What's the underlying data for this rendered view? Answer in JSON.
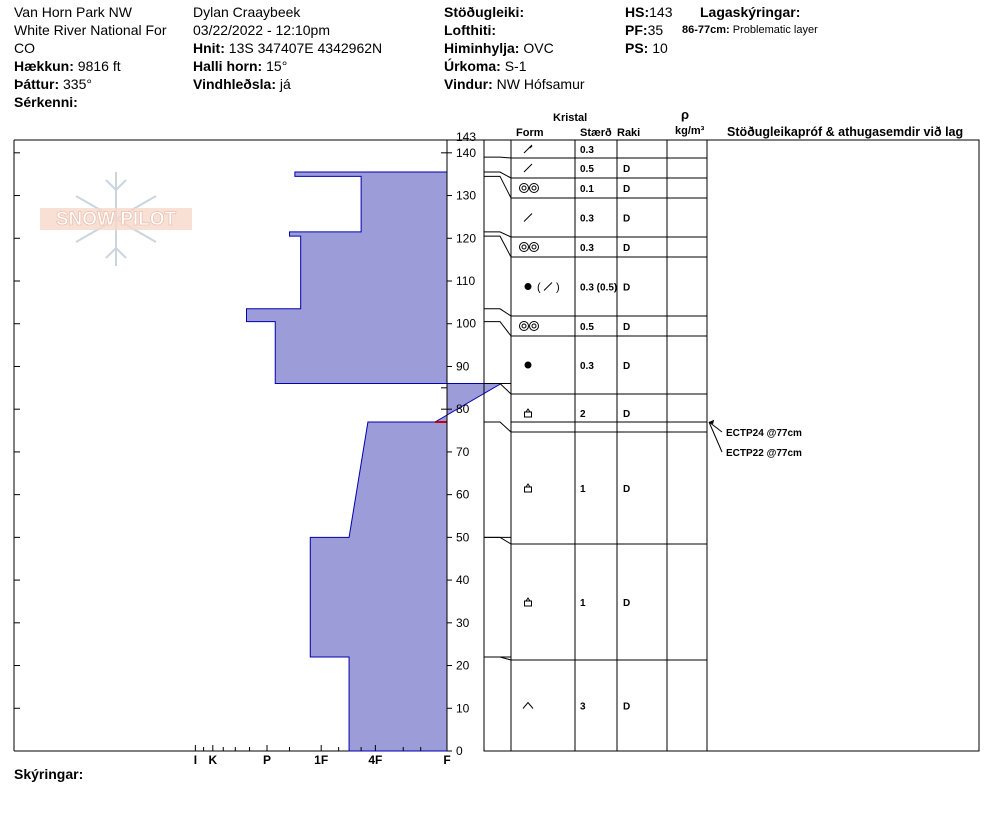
{
  "header": {
    "location_line1": "Van Horn Park NW",
    "location_line2": "White River National For",
    "location_line3": "CO",
    "elevation_label": "Hækkun:",
    "elevation_value": "9816 ft",
    "aspect_label": "Þáttur:",
    "aspect_value": "335°",
    "features_label": "Sérkenni:",
    "observer": "Dylan Craaybeek",
    "datetime": "03/22/2022 - 12:10pm",
    "coords_label": "Hnit:",
    "coords_value": "13S 347407E 4342962N",
    "slope_label": "Halli horn:",
    "slope_value": "15°",
    "wind_loading_label": "Vindhleðsla:",
    "wind_loading_value": "já",
    "stability_label": "Stöðugleiki:",
    "air_temp_label": "Lofthiti:",
    "sky_label": "Himinhylja:",
    "sky_value": "OVC",
    "precip_label": "Úrkoma:",
    "precip_value": "S-1",
    "wind_label": "Vindur:",
    "wind_value": "NW Hófsamur",
    "hs_label": "HS:",
    "hs_value": "143",
    "pf_label": "PF:",
    "pf_value": "35",
    "ps_label": "PS:",
    "ps_value": "10",
    "layer_notes_label": "Lagaskýringar:",
    "layer_note_range": "86-77cm:",
    "layer_note_text": "Problematic layer"
  },
  "table_headers": {
    "crystal": "Kristal",
    "form": "Form",
    "size": "Stærð",
    "moisture": "Raki",
    "rho": "ρ",
    "density_unit": "kg/m³",
    "tests": "Stöðugleikapróf & athugasemdir við lag"
  },
  "footer": {
    "comments_label": "Skýringar:"
  },
  "logo_text": "SNOW PILOT",
  "colors": {
    "fill": "#9c9cd8",
    "stroke": "#0000b0",
    "weak_layer": "#c00000"
  },
  "chart_data": {
    "type": "snow_profile",
    "height_axis": {
      "ticks": [
        "0",
        "10",
        "20",
        "30",
        "40",
        "50",
        "60",
        "70",
        "80",
        "90",
        "100",
        "110",
        "120",
        "130",
        "140",
        "143"
      ],
      "range": [
        0,
        143
      ]
    },
    "hardness_axis": {
      "ticks": [
        "I",
        "K",
        "P",
        "1F",
        "4F",
        "F"
      ],
      "tick_values": [
        5,
        4,
        2,
        1,
        0.5,
        0.2
      ]
    },
    "hardness_profile": [
      {
        "bottom": 143,
        "top": 143,
        "hardness": 0.2
      },
      {
        "bottom": 134.5,
        "top": 143,
        "hardness": 0.2
      },
      {
        "bottom": 134.5,
        "top": 135.5,
        "hardness": 1.4
      },
      {
        "bottom": 121.5,
        "top": 134.5,
        "hardness": 0.6
      },
      {
        "bottom": 120.5,
        "top": 121.5,
        "hardness": 1.5
      },
      {
        "bottom": 103.5,
        "top": 120.5,
        "hardness": 1.3
      },
      {
        "bottom": 100.5,
        "top": 103.5,
        "hardness": 2.6
      },
      {
        "bottom": 86,
        "top": 100.5,
        "hardness": 1.8
      },
      {
        "bottom": 77,
        "top": 86,
        "hardness": 0.1
      },
      {
        "bottom": 77,
        "top": 77,
        "hardness": 0.55
      },
      {
        "bottom": 50,
        "top": 50,
        "hardness": 0.7
      },
      {
        "bottom": 22,
        "top": 50,
        "hardness": 1.15
      },
      {
        "bottom": 0,
        "top": 22,
        "hardness": 0.7
      }
    ],
    "layers": [
      {
        "top": 143,
        "bottom": 139,
        "form": "precip-particles",
        "size": "0.3",
        "moisture": ""
      },
      {
        "top": 139,
        "bottom": 135.5,
        "form": "decomposing-fragments",
        "size": "0.5",
        "moisture": "D"
      },
      {
        "top": 135.5,
        "bottom": 134.5,
        "form": "melt-forms",
        "size": "0.1",
        "moisture": "D"
      },
      {
        "top": 134.5,
        "bottom": 121.5,
        "form": "decomposing-fragments",
        "size": "0.3",
        "moisture": "D"
      },
      {
        "top": 121.5,
        "bottom": 120.5,
        "form": "melt-forms",
        "size": "0.3",
        "moisture": "D"
      },
      {
        "top": 120.5,
        "bottom": 103.5,
        "form": "rounded-grains-decomposing",
        "size": "0.3 (0.5)",
        "moisture": "D"
      },
      {
        "top": 103.5,
        "bottom": 100.5,
        "form": "melt-forms",
        "size": "0.5",
        "moisture": "D"
      },
      {
        "top": 100.5,
        "bottom": 86,
        "form": "rounded-grains",
        "size": "0.3",
        "moisture": "D"
      },
      {
        "top": 86,
        "bottom": 77,
        "form": "faceted-crystals",
        "size": "2",
        "moisture": "D"
      },
      {
        "top": 77,
        "bottom": 50,
        "form": "faceted-crystals",
        "size": "1",
        "moisture": "D"
      },
      {
        "top": 50,
        "bottom": 22,
        "form": "faceted-crystals",
        "size": "1",
        "moisture": "D"
      },
      {
        "top": 22,
        "bottom": 0,
        "form": "depth-hoar",
        "size": "3",
        "moisture": "D"
      }
    ],
    "stability_tests": [
      {
        "label": "ECTP24 @77cm",
        "depth": 77
      },
      {
        "label": "ECTP22 @77cm",
        "depth": 77
      }
    ]
  }
}
